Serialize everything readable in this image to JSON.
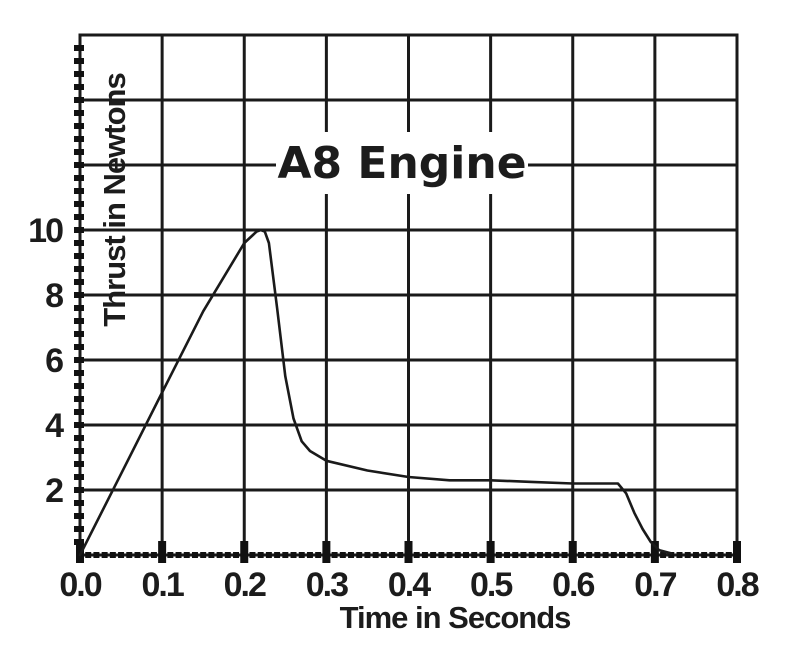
{
  "chart_data": {
    "type": "line",
    "title": "A8 Engine",
    "xlabel": "Time in Seconds",
    "ylabel": "Thrust in Newtons",
    "xlim": [
      0,
      0.8
    ],
    "ylim": [
      0,
      16
    ],
    "x_ticks": [
      "0.0",
      "0.1",
      "0.2",
      "0.3",
      "0.4",
      "0.5",
      "0.6",
      "0.7",
      "0.8"
    ],
    "y_ticks": [
      "2",
      "4",
      "6",
      "8",
      "10"
    ],
    "grid": true,
    "series": [
      {
        "x": [
          0.0,
          0.05,
          0.1,
          0.15,
          0.2,
          0.215,
          0.22,
          0.225,
          0.23,
          0.24,
          0.25,
          0.26,
          0.27,
          0.28,
          0.3,
          0.35,
          0.4,
          0.45,
          0.5,
          0.55,
          0.6,
          0.64,
          0.655,
          0.665,
          0.675,
          0.685,
          0.695,
          0.705,
          0.72
        ],
        "y": [
          0.0,
          2.5,
          5.0,
          7.5,
          9.6,
          9.95,
          10.0,
          9.95,
          9.6,
          7.6,
          5.5,
          4.2,
          3.5,
          3.2,
          2.9,
          2.6,
          2.4,
          2.3,
          2.3,
          2.25,
          2.2,
          2.2,
          2.2,
          1.9,
          1.3,
          0.8,
          0.4,
          0.15,
          0.05
        ]
      }
    ]
  }
}
